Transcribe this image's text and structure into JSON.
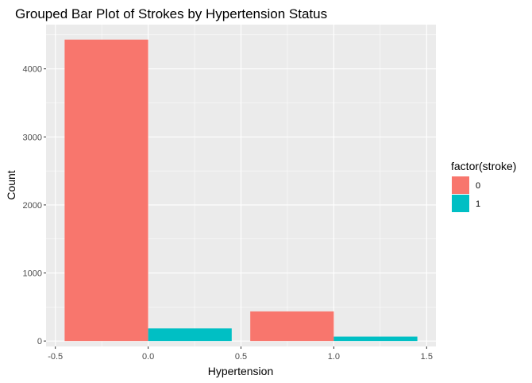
{
  "chart_data": {
    "type": "bar",
    "title": "Grouped Bar Plot of Strokes by Hypertension Status",
    "xlabel": "Hypertension",
    "ylabel": "Count",
    "xlim": [
      -0.55,
      1.55
    ],
    "ylim": [
      -80,
      4650
    ],
    "xticks": [
      -0.5,
      0.0,
      0.5,
      1.0,
      1.5
    ],
    "xtick_labels": [
      "-0.5",
      "0.0",
      "0.5",
      "1.0",
      "1.5"
    ],
    "yticks": [
      0,
      1000,
      2000,
      3000,
      4000
    ],
    "ytick_labels": [
      "0",
      "1000",
      "2000",
      "3000",
      "4000"
    ],
    "grid": true,
    "legend": {
      "title": "factor(stroke)",
      "position": "right",
      "entries": [
        {
          "label": "0",
          "color": "#F8766D"
        },
        {
          "label": "1",
          "color": "#00BFC4"
        }
      ]
    },
    "bars": [
      {
        "group": "0",
        "series": "0",
        "xmin": -0.45,
        "xmax": 0.0,
        "value": 4430,
        "color": "#F8766D"
      },
      {
        "group": "0",
        "series": "1",
        "xmin": 0.0,
        "xmax": 0.45,
        "value": 185,
        "color": "#00BFC4"
      },
      {
        "group": "1",
        "series": "0",
        "xmin": 0.55,
        "xmax": 1.0,
        "value": 435,
        "color": "#F8766D"
      },
      {
        "group": "1",
        "series": "1",
        "xmin": 1.0,
        "xmax": 1.45,
        "value": 65,
        "color": "#00BFC4"
      }
    ],
    "panel_color": "#EBEBEB",
    "grid_color": "#FFFFFF"
  }
}
